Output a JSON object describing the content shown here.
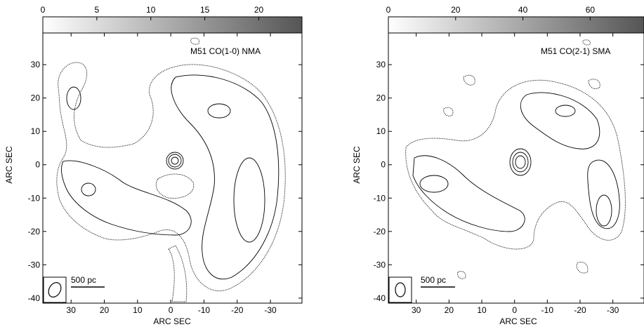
{
  "panels": [
    {
      "id": "left",
      "title": "M51 CO(1-0) NMA",
      "colorbar": {
        "min": 0,
        "max": 24,
        "ticks": [
          0,
          5,
          10,
          15,
          20
        ],
        "ticklabels": [
          "0",
          "5",
          "10",
          "15",
          "20"
        ]
      },
      "xlabel": "ARC SEC",
      "ylabel": "ARC SEC",
      "xticks": [
        30,
        20,
        10,
        0,
        -10,
        -20,
        -30
      ],
      "xticklabels": [
        "30",
        "20",
        "10",
        "0",
        "-10",
        "-20",
        "-30"
      ],
      "yticks": [
        30,
        20,
        10,
        0,
        -10,
        -20,
        -30,
        -40
      ],
      "yticklabels": [
        "30",
        "20",
        "10",
        "0",
        "-10",
        "-20",
        "-30",
        "-40"
      ],
      "xlim": [
        38.5,
        -39.5
      ],
      "ylim": [
        -41.5,
        39.5
      ],
      "scalebar_label": "500 pc"
    },
    {
      "id": "right",
      "title": "M51 CO(2-1) SMA",
      "colorbar": {
        "min": 0,
        "max": 76,
        "ticks": [
          0,
          20,
          40,
          60
        ],
        "ticklabels": [
          "0",
          "20",
          "40",
          "60"
        ]
      },
      "xlabel": "ARC SEC",
      "ylabel": "ARC SEC",
      "xticks": [
        30,
        20,
        10,
        0,
        -10,
        -20,
        -30
      ],
      "xticklabels": [
        "30",
        "20",
        "10",
        "0",
        "-10",
        "-20",
        "-30"
      ],
      "yticks": [
        30,
        20,
        10,
        0,
        -10,
        -20,
        -30,
        -40
      ],
      "yticklabels": [
        "30",
        "20",
        "10",
        "0",
        "-10",
        "-20",
        "-30",
        "-40"
      ],
      "xlim": [
        38.5,
        -39.5
      ],
      "ylim": [
        -41.5,
        39.5
      ],
      "scalebar_label": "500 pc"
    }
  ]
}
